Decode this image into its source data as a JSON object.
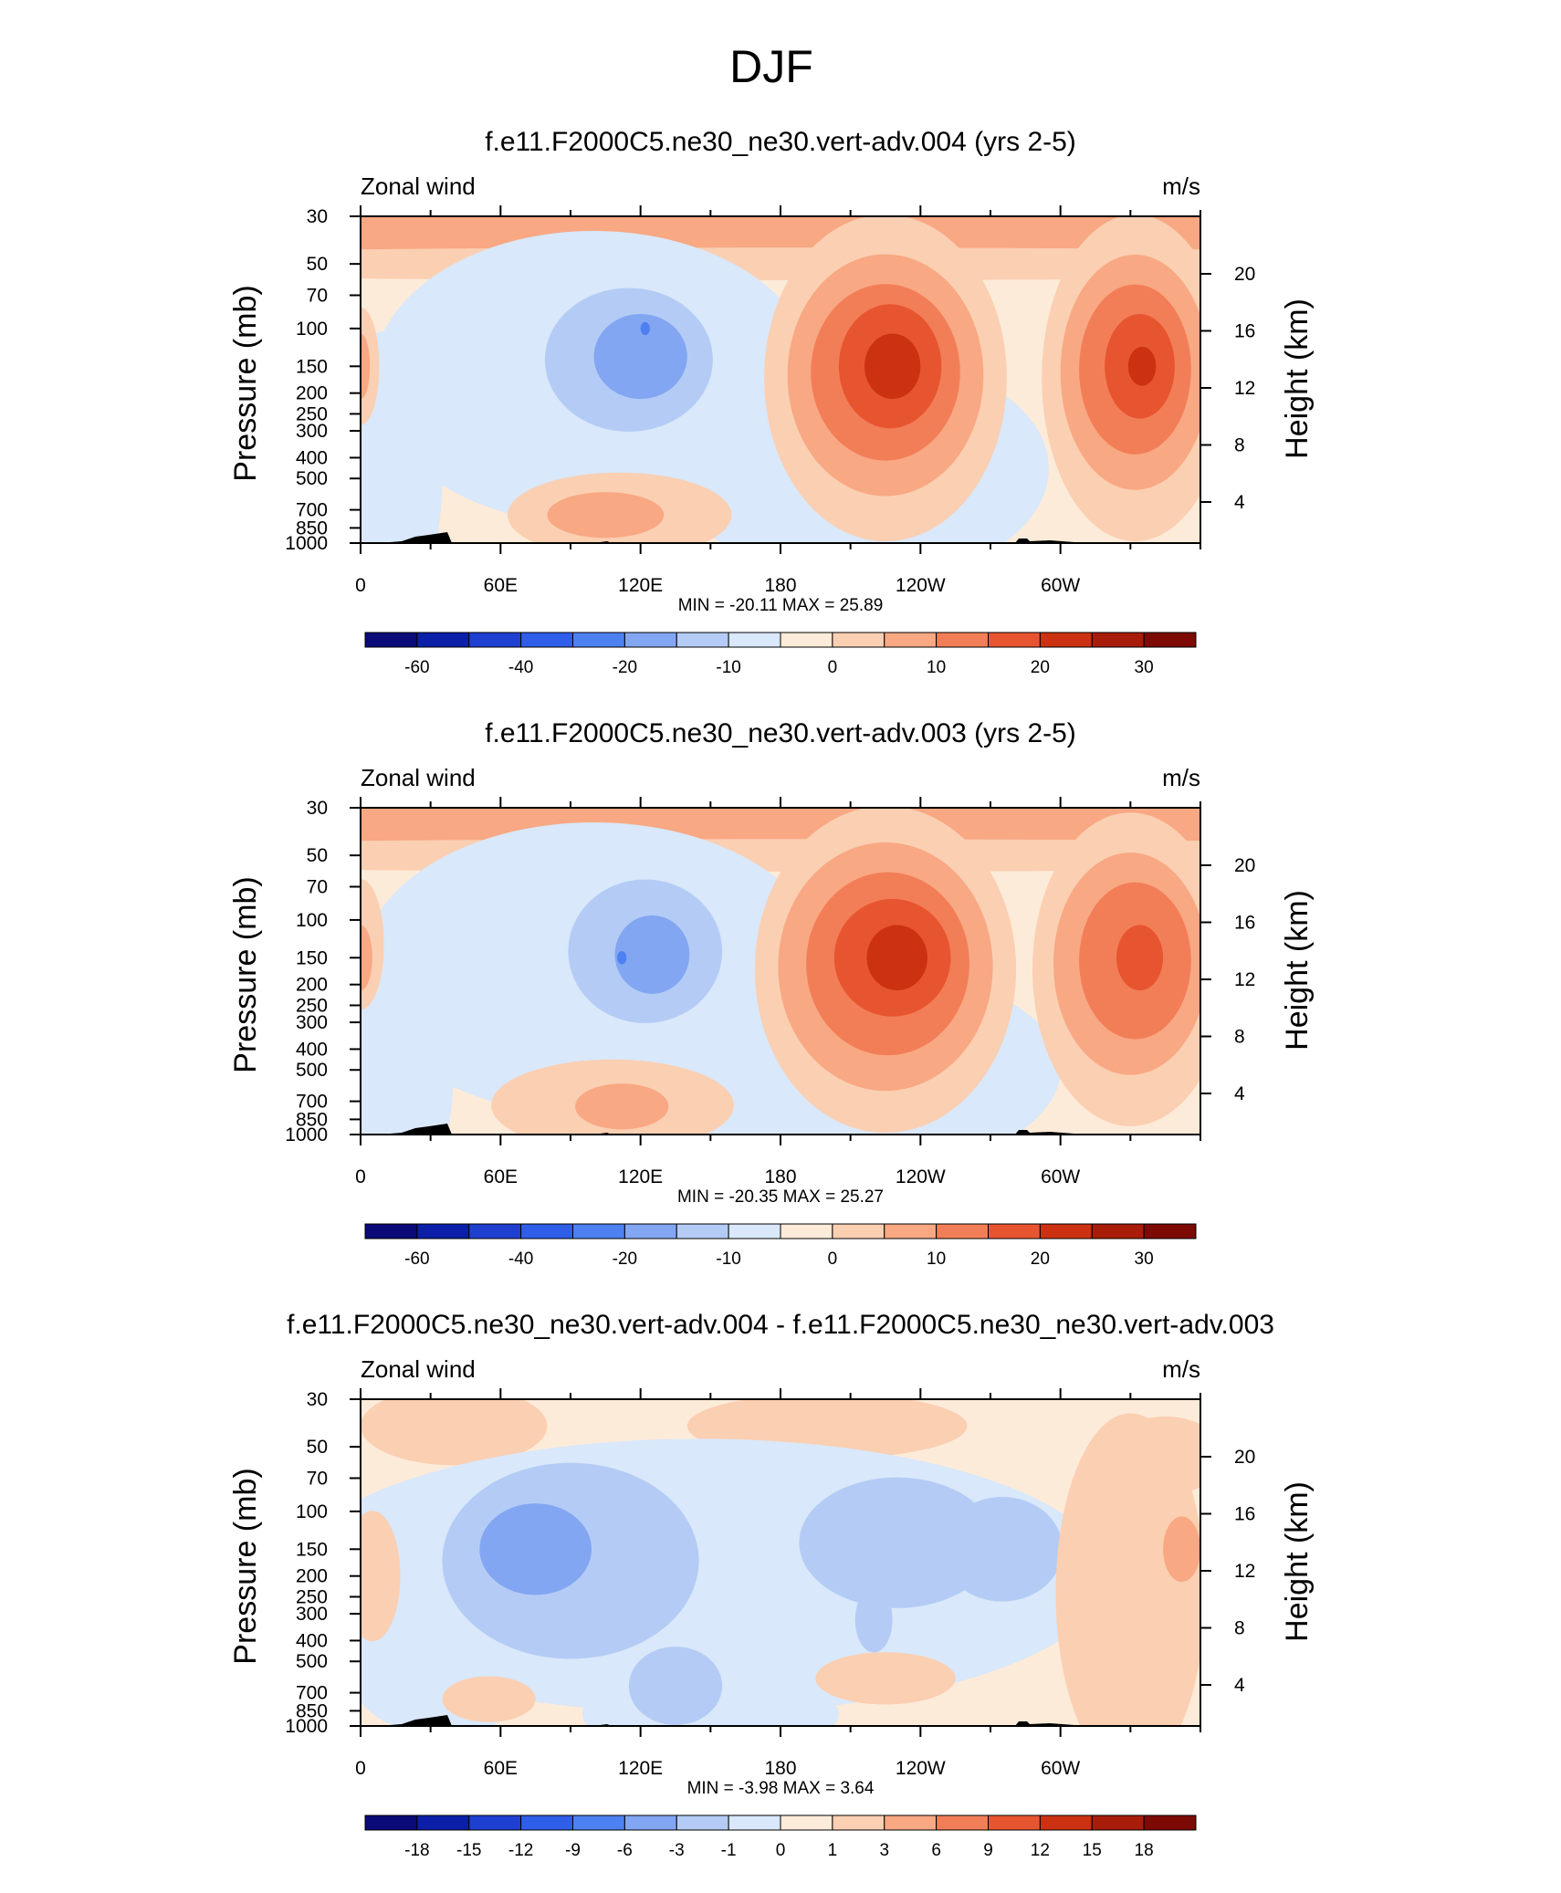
{
  "title": "DJF",
  "colors": {
    "wind": [
      "#0a0a78",
      "#0b1fa8",
      "#1f3fd0",
      "#2f5ee8",
      "#4d80f0",
      "#83a6f2",
      "#b4ccf5",
      "#d9e8fa",
      "#fdebd9",
      "#fbcfb2",
      "#f8a883",
      "#f27e57",
      "#e75530",
      "#cc3211",
      "#a81d0a",
      "#7d0a05"
    ],
    "diff": [
      "#0a0a78",
      "#0b1fa8",
      "#1f3fd0",
      "#2f5ee8",
      "#4d80f0",
      "#83a6f2",
      "#b4ccf5",
      "#d9e8fa",
      "#fdebd9",
      "#fbcfb2",
      "#f8a883",
      "#f27e57",
      "#e75530",
      "#cc3211",
      "#a81d0a",
      "#7d0a05"
    ],
    "topo": "#000000"
  },
  "chart_data": [
    {
      "type": "heatmap",
      "title": "f.e11.F2000C5.ne30_ne30.vert-adv.004 (yrs 2-5)",
      "left_label": "Zonal wind",
      "right_label": "m/s",
      "ylabel": "Pressure (mb)",
      "y2label": "Height (km)",
      "stats": "MIN = -20.11   MAX =  25.89",
      "x_ticks": [
        "0",
        "60E",
        "120E",
        "180",
        "120W",
        "60W"
      ],
      "x_tick_values": [
        0,
        60,
        120,
        180,
        240,
        300
      ],
      "xlim": [
        0,
        360
      ],
      "y_ticks": [
        "30",
        "50",
        "70",
        "100",
        "150",
        "200",
        "250",
        "300",
        "400",
        "500",
        "700",
        "850",
        "1000"
      ],
      "y_tick_values": [
        30,
        50,
        70,
        100,
        150,
        200,
        250,
        300,
        400,
        500,
        700,
        850,
        1000
      ],
      "ylim": [
        1000,
        30
      ],
      "y2_ticks": [
        "4",
        "8",
        "12",
        "16",
        "20"
      ],
      "y2_tick_values": [
        4,
        8,
        12,
        16,
        20
      ],
      "colorbar": {
        "labels": [
          "-60",
          "-40",
          "-20",
          "-10",
          "0",
          "10",
          "20",
          "30"
        ],
        "positions": [
          1,
          3,
          5,
          7,
          9,
          11,
          13,
          15
        ]
      },
      "features": [
        {
          "level": 10,
          "lon": 180,
          "p": 36,
          "lw": 400,
          "ph": 0.09
        },
        {
          "level": 10,
          "lon": 0,
          "p": 36,
          "lw": 400,
          "ph": 0.09
        },
        {
          "level": 10,
          "lon": 360,
          "p": 36,
          "lw": 400,
          "ph": 0.09
        },
        {
          "level": 9,
          "lon": 180,
          "p": 50,
          "lw": 400,
          "ph": 0.05
        },
        {
          "level": 7,
          "lon": 100,
          "p": 170,
          "lw": 95,
          "ph": 0.45
        },
        {
          "level": 7,
          "lon": 215,
          "p": 450,
          "lw": 80,
          "ph": 0.35
        },
        {
          "level": 7,
          "lon": 10,
          "p": 500,
          "lw": 25,
          "ph": 0.45
        },
        {
          "level": 6,
          "lon": 115,
          "p": 140,
          "lw": 36,
          "ph": 0.22
        },
        {
          "level": 5,
          "lon": 120,
          "p": 135,
          "lw": 20,
          "ph": 0.13
        },
        {
          "level": 4,
          "lon": 122,
          "p": 100,
          "lw": 2,
          "ph": 0.02
        },
        {
          "level": 9,
          "lon": 111,
          "p": 740,
          "lw": 48,
          "ph": 0.13
        },
        {
          "level": 10,
          "lon": 105,
          "p": 740,
          "lw": 25,
          "ph": 0.07
        },
        {
          "level": 9,
          "lon": 225,
          "p": 170,
          "lw": 52,
          "ph": 0.5
        },
        {
          "level": 10,
          "lon": 225,
          "p": 165,
          "lw": 42,
          "ph": 0.37
        },
        {
          "level": 11,
          "lon": 225,
          "p": 160,
          "lw": 32,
          "ph": 0.27
        },
        {
          "level": 12,
          "lon": 227,
          "p": 150,
          "lw": 22,
          "ph": 0.19
        },
        {
          "level": 13,
          "lon": 228,
          "p": 150,
          "lw": 12,
          "ph": 0.1
        },
        {
          "level": 9,
          "lon": 332,
          "p": 170,
          "lw": 40,
          "ph": 0.5
        },
        {
          "level": 10,
          "lon": 332,
          "p": 160,
          "lw": 32,
          "ph": 0.36
        },
        {
          "level": 11,
          "lon": 332,
          "p": 155,
          "lw": 24,
          "ph": 0.26
        },
        {
          "level": 12,
          "lon": 334,
          "p": 150,
          "lw": 15,
          "ph": 0.16
        },
        {
          "level": 13,
          "lon": 335,
          "p": 150,
          "lw": 6,
          "ph": 0.06
        },
        {
          "level": 9,
          "lon": 0,
          "p": 150,
          "lw": 8,
          "ph": 0.18
        },
        {
          "level": 10,
          "lon": 0,
          "p": 150,
          "lw": 4,
          "ph": 0.1
        }
      ]
    },
    {
      "type": "heatmap",
      "title": "f.e11.F2000C5.ne30_ne30.vert-adv.003 (yrs 2-5)",
      "left_label": "Zonal wind",
      "right_label": "m/s",
      "ylabel": "Pressure (mb)",
      "y2label": "Height (km)",
      "stats": "MIN = -20.35   MAX =  25.27",
      "x_ticks": [
        "0",
        "60E",
        "120E",
        "180",
        "120W",
        "60W"
      ],
      "x_tick_values": [
        0,
        60,
        120,
        180,
        240,
        300
      ],
      "xlim": [
        0,
        360
      ],
      "y_ticks": [
        "30",
        "50",
        "70",
        "100",
        "150",
        "200",
        "250",
        "300",
        "400",
        "500",
        "700",
        "850",
        "1000"
      ],
      "y_tick_values": [
        30,
        50,
        70,
        100,
        150,
        200,
        250,
        300,
        400,
        500,
        700,
        850,
        1000
      ],
      "ylim": [
        1000,
        30
      ],
      "y2_ticks": [
        "4",
        "8",
        "12",
        "16",
        "20"
      ],
      "y2_tick_values": [
        4,
        8,
        12,
        16,
        20
      ],
      "colorbar": {
        "labels": [
          "-60",
          "-40",
          "-20",
          "-10",
          "0",
          "10",
          "20",
          "30"
        ],
        "positions": [
          1,
          3,
          5,
          7,
          9,
          11,
          13,
          15
        ]
      },
      "features": [
        {
          "level": 10,
          "lon": 180,
          "p": 36,
          "lw": 400,
          "ph": 0.09
        },
        {
          "level": 9,
          "lon": 180,
          "p": 50,
          "lw": 400,
          "ph": 0.05
        },
        {
          "level": 7,
          "lon": 100,
          "p": 170,
          "lw": 100,
          "ph": 0.45
        },
        {
          "level": 7,
          "lon": 210,
          "p": 500,
          "lw": 90,
          "ph": 0.32
        },
        {
          "level": 7,
          "lon": 10,
          "p": 500,
          "lw": 30,
          "ph": 0.45
        },
        {
          "level": 6,
          "lon": 122,
          "p": 140,
          "lw": 33,
          "ph": 0.22
        },
        {
          "level": 5,
          "lon": 125,
          "p": 145,
          "lw": 16,
          "ph": 0.12
        },
        {
          "level": 4,
          "lon": 112,
          "p": 150,
          "lw": 2,
          "ph": 0.02
        },
        {
          "level": 9,
          "lon": 108,
          "p": 730,
          "lw": 52,
          "ph": 0.14
        },
        {
          "level": 10,
          "lon": 112,
          "p": 740,
          "lw": 20,
          "ph": 0.07
        },
        {
          "level": 9,
          "lon": 225,
          "p": 170,
          "lw": 56,
          "ph": 0.5
        },
        {
          "level": 10,
          "lon": 225,
          "p": 165,
          "lw": 46,
          "ph": 0.38
        },
        {
          "level": 11,
          "lon": 226,
          "p": 160,
          "lw": 35,
          "ph": 0.28
        },
        {
          "level": 12,
          "lon": 228,
          "p": 150,
          "lw": 25,
          "ph": 0.18
        },
        {
          "level": 13,
          "lon": 230,
          "p": 150,
          "lw": 13,
          "ph": 0.1
        },
        {
          "level": 9,
          "lon": 330,
          "p": 170,
          "lw": 42,
          "ph": 0.48
        },
        {
          "level": 10,
          "lon": 330,
          "p": 160,
          "lw": 33,
          "ph": 0.34
        },
        {
          "level": 11,
          "lon": 332,
          "p": 155,
          "lw": 24,
          "ph": 0.24
        },
        {
          "level": 12,
          "lon": 334,
          "p": 150,
          "lw": 10,
          "ph": 0.1
        },
        {
          "level": 9,
          "lon": 0,
          "p": 130,
          "lw": 10,
          "ph": 0.2
        },
        {
          "level": 10,
          "lon": 0,
          "p": 150,
          "lw": 5,
          "ph": 0.1
        }
      ]
    },
    {
      "type": "heatmap",
      "title": "f.e11.F2000C5.ne30_ne30.vert-adv.004 - f.e11.F2000C5.ne30_ne30.vert-adv.003",
      "left_label": "Zonal wind",
      "right_label": "m/s",
      "ylabel": "Pressure (mb)",
      "y2label": "Height (km)",
      "stats": "MIN =  -3.98   MAX =   3.64",
      "x_ticks": [
        "0",
        "60E",
        "120E",
        "180",
        "120W",
        "60W"
      ],
      "x_tick_values": [
        0,
        60,
        120,
        180,
        240,
        300
      ],
      "xlim": [
        0,
        360
      ],
      "y_ticks": [
        "30",
        "50",
        "70",
        "100",
        "150",
        "200",
        "250",
        "300",
        "400",
        "500",
        "700",
        "850",
        "1000"
      ],
      "y_tick_values": [
        30,
        50,
        70,
        100,
        150,
        200,
        250,
        300,
        400,
        500,
        700,
        850,
        1000
      ],
      "ylim": [
        1000,
        30
      ],
      "y2_ticks": [
        "4",
        "8",
        "12",
        "16",
        "20"
      ],
      "y2_tick_values": [
        4,
        8,
        12,
        16,
        20
      ],
      "colorbar": {
        "labels": [
          "-18",
          "-15",
          "-12",
          "-9",
          "-6",
          "-3",
          "-1",
          "0",
          "1",
          "3",
          "6",
          "9",
          "12",
          "15",
          "18"
        ],
        "positions": [
          1,
          2,
          3,
          4,
          5,
          6,
          7,
          8,
          9,
          10,
          11,
          12,
          13,
          14,
          15
        ]
      },
      "features": [
        {
          "level": 9,
          "lon": 40,
          "p": 40,
          "lw": 40,
          "ph": 0.12
        },
        {
          "level": 9,
          "lon": 200,
          "p": 40,
          "lw": 60,
          "ph": 0.1
        },
        {
          "level": 9,
          "lon": 345,
          "p": 55,
          "lw": 25,
          "ph": 0.12
        },
        {
          "level": 7,
          "lon": 145,
          "p": 200,
          "lw": 175,
          "ph": 0.42
        },
        {
          "level": 7,
          "lon": 35,
          "p": 550,
          "lw": 40,
          "ph": 0.2
        },
        {
          "level": 7,
          "lon": 150,
          "p": 880,
          "lw": 55,
          "ph": 0.12
        },
        {
          "level": 6,
          "lon": 90,
          "p": 170,
          "lw": 55,
          "ph": 0.3
        },
        {
          "level": 5,
          "lon": 75,
          "p": 150,
          "lw": 24,
          "ph": 0.14
        },
        {
          "level": 6,
          "lon": 230,
          "p": 140,
          "lw": 42,
          "ph": 0.2
        },
        {
          "level": 6,
          "lon": 275,
          "p": 150,
          "lw": 26,
          "ph": 0.16
        },
        {
          "level": 6,
          "lon": 220,
          "p": 320,
          "lw": 8,
          "ph": 0.1
        },
        {
          "level": 6,
          "lon": 135,
          "p": 650,
          "lw": 20,
          "ph": 0.12
        },
        {
          "level": 9,
          "lon": 330,
          "p": 240,
          "lw": 32,
          "ph": 0.55
        },
        {
          "level": 10,
          "lon": 352,
          "p": 150,
          "lw": 8,
          "ph": 0.1
        },
        {
          "level": 9,
          "lon": 5,
          "p": 200,
          "lw": 12,
          "ph": 0.2
        },
        {
          "level": 9,
          "lon": 225,
          "p": 600,
          "lw": 30,
          "ph": 0.08
        },
        {
          "level": 9,
          "lon": 55,
          "p": 750,
          "lw": 20,
          "ph": 0.07
        }
      ]
    }
  ]
}
